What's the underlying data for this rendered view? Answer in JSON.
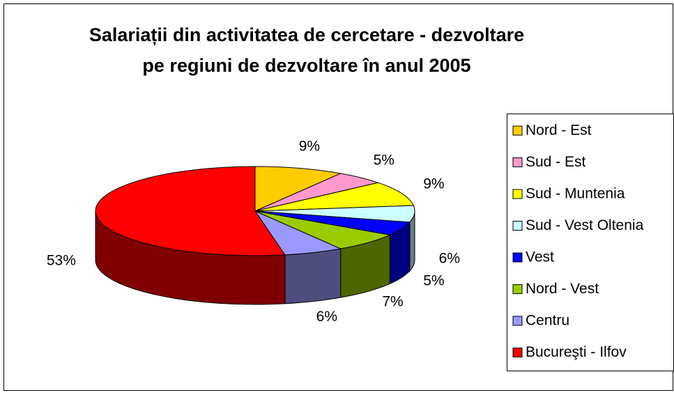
{
  "chart_data": {
    "type": "pie3d",
    "title": "Salariații din activitatea de cercetare - dezvoltare pe regiuni de dezvoltare în anul 2005",
    "categories": [
      "Nord - Est",
      "Sud - Est",
      "Sud - Muntenia",
      "Sud - Vest Oltenia",
      "Vest",
      "Nord - Vest",
      "Centru",
      "Bucureşti - Ilfov"
    ],
    "values": [
      9,
      5,
      9,
      6,
      5,
      7,
      6,
      53
    ],
    "value_labels": [
      "9%",
      "5%",
      "9%",
      "6%",
      "5%",
      "7%",
      "6%",
      "53%"
    ],
    "colors": [
      "#ffcc00",
      "#ff99cc",
      "#ffff00",
      "#ccffff",
      "#0000ff",
      "#99cc00",
      "#9999ff",
      "#ff0000"
    ],
    "legend": "right"
  }
}
